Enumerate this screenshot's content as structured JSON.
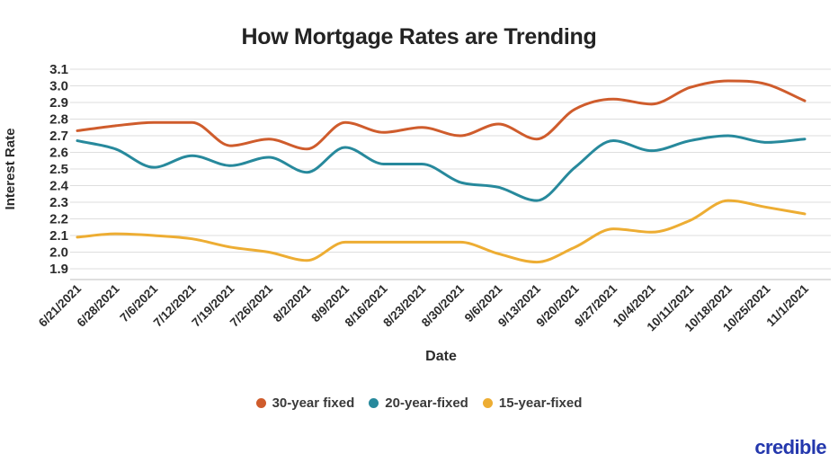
{
  "page": {
    "title": "How Mortgage Rates are Trending",
    "logo_text": "credible",
    "logo_color": "#2438ad",
    "background": "#ffffff",
    "grid_color": "#dedede",
    "axis_line_color": "#c9c9c9",
    "tick_label_color": "#2b2b2b"
  },
  "chart_data": {
    "type": "line",
    "title": "How Mortgage Rates are Trending",
    "xlabel": "Date",
    "ylabel": "Interest Rate",
    "ylim": [
      1.9,
      3.1
    ],
    "ytick_step": 0.1,
    "grid": true,
    "legend_position": "bottom",
    "categories": [
      "6/21/2021",
      "6/28/2021",
      "7/6/2021",
      "7/12/2021",
      "7/19/2021",
      "7/26/2021",
      "8/2/2021",
      "8/9/2021",
      "8/16/2021",
      "8/23/2021",
      "8/30/2021",
      "9/6/2021",
      "9/13/2021",
      "9/20/2021",
      "9/27/2021",
      "10/4/2021",
      "10/11/2021",
      "10/18/2021",
      "10/25/2021",
      "11/1/2021"
    ],
    "series": [
      {
        "name": "30-year fixed",
        "color": "#cf5c2c",
        "values": [
          2.73,
          2.76,
          2.78,
          2.78,
          2.64,
          2.68,
          2.62,
          2.78,
          2.72,
          2.75,
          2.7,
          2.77,
          2.68,
          2.86,
          2.92,
          2.89,
          2.99,
          3.03,
          3.01,
          2.91
        ]
      },
      {
        "name": "20-year-fixed",
        "color": "#27899c",
        "values": [
          2.67,
          2.62,
          2.51,
          2.58,
          2.52,
          2.57,
          2.48,
          2.63,
          2.53,
          2.53,
          2.42,
          2.39,
          2.31,
          2.51,
          2.67,
          2.61,
          2.67,
          2.7,
          2.66,
          2.68
        ]
      },
      {
        "name": "15-year-fixed",
        "color": "#edad33",
        "values": [
          2.09,
          2.11,
          2.1,
          2.08,
          2.03,
          2.0,
          1.95,
          2.06,
          2.06,
          2.06,
          2.06,
          1.99,
          1.94,
          2.03,
          2.14,
          2.12,
          2.19,
          2.31,
          2.27,
          2.23
        ]
      }
    ]
  }
}
